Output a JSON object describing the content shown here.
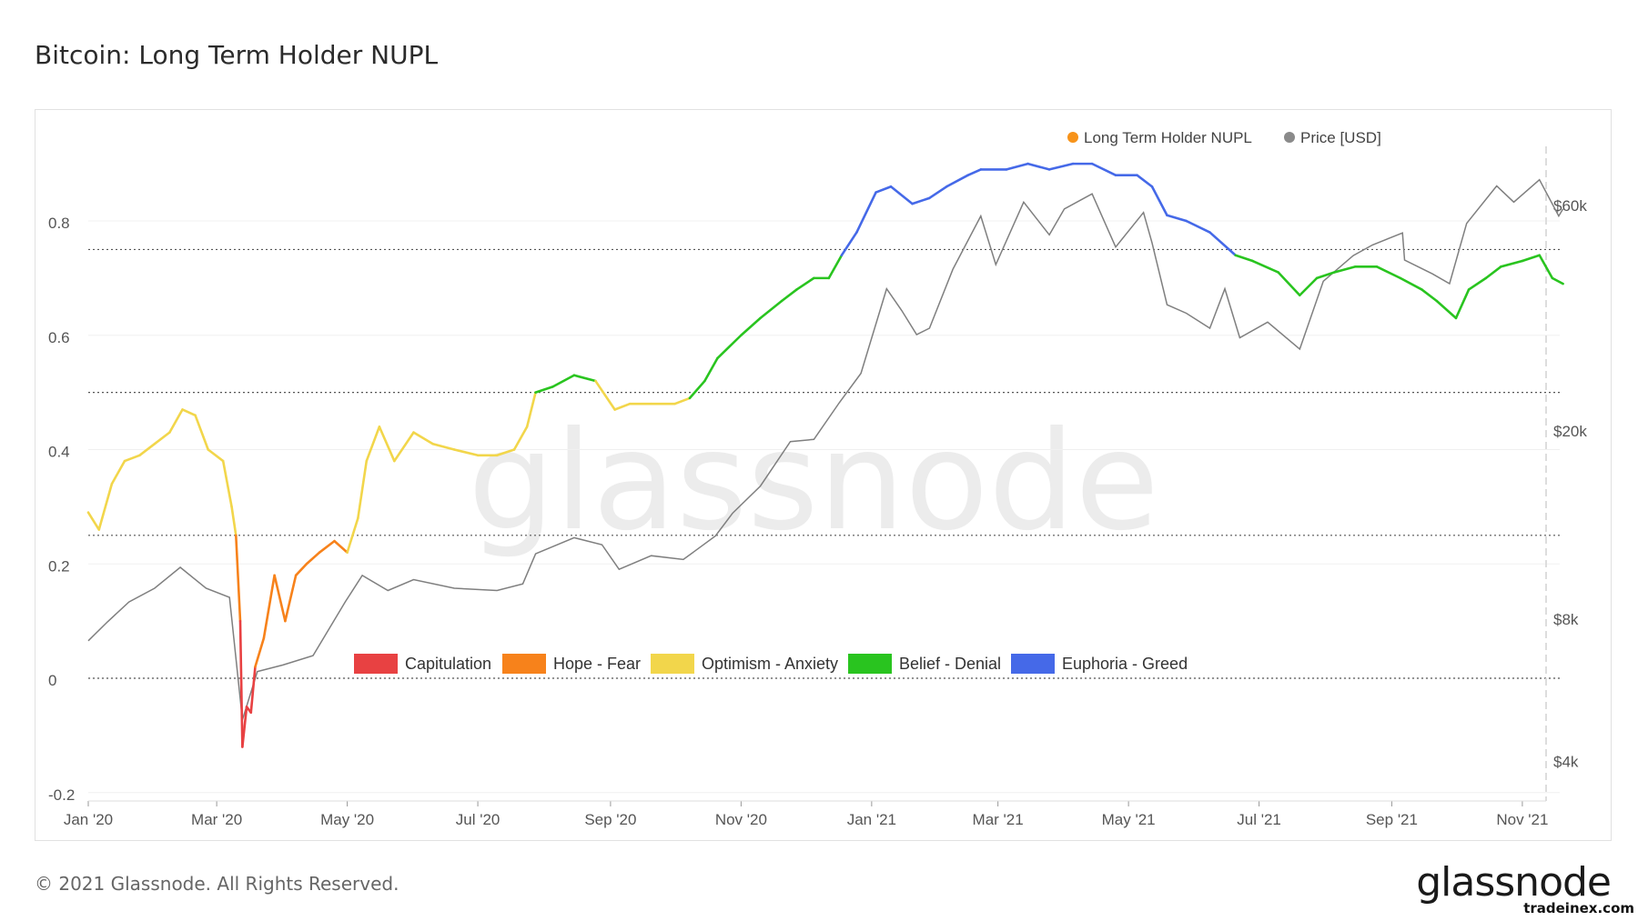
{
  "title": "Bitcoin: Long Term Holder NUPL",
  "footer": "© 2021 Glassnode. All Rights Reserved.",
  "brand": "glassnode",
  "watermark": "glassnode",
  "source": "tradeinex.com",
  "legend_top": [
    {
      "label": "Long Term Holder NUPL",
      "color": "#f7931a"
    },
    {
      "label": "Price [USD]",
      "color": "#8a8a8a"
    }
  ],
  "zones": [
    {
      "label": "Capitulation",
      "color": "#e84142"
    },
    {
      "label": "Hope - Fear",
      "color": "#f7821b"
    },
    {
      "label": "Optimism - Anxiety",
      "color": "#f2d64b"
    },
    {
      "label": "Belief - Denial",
      "color": "#29c41f"
    },
    {
      "label": "Euphoria - Greed",
      "color": "#4569e8"
    }
  ],
  "chart_data": {
    "type": "line",
    "xlabels": [
      "Jan '20",
      "Mar '20",
      "May '20",
      "Jul '20",
      "Sep '20",
      "Nov '20",
      "Jan '21",
      "Mar '21",
      "May '21",
      "Jul '21",
      "Sep '21",
      "Nov '21"
    ],
    "yticks_left": [
      "0.8",
      "0.6",
      "0.4",
      "0.2",
      "0",
      "-0.2"
    ],
    "yticks_right": [
      "$60k",
      "$20k",
      "$8k",
      "$4k"
    ],
    "ylim_left": [
      -0.2,
      1.0
    ],
    "zone_thresholds": [
      0,
      0.25,
      0.5,
      0.75
    ],
    "series": [
      {
        "name": "Long Term Holder NUPL",
        "axis": "left",
        "points": [
          [
            "2020-01-01",
            0.29
          ],
          [
            "2020-01-06",
            0.26
          ],
          [
            "2020-01-12",
            0.34
          ],
          [
            "2020-01-18",
            0.38
          ],
          [
            "2020-01-25",
            0.39
          ],
          [
            "2020-02-01",
            0.41
          ],
          [
            "2020-02-08",
            0.43
          ],
          [
            "2020-02-14",
            0.47
          ],
          [
            "2020-02-20",
            0.46
          ],
          [
            "2020-02-26",
            0.4
          ],
          [
            "2020-03-04",
            0.38
          ],
          [
            "2020-03-08",
            0.3
          ],
          [
            "2020-03-10",
            0.25
          ],
          [
            "2020-03-12",
            0.1
          ],
          [
            "2020-03-13",
            -0.12
          ],
          [
            "2020-03-15",
            -0.05
          ],
          [
            "2020-03-17",
            -0.06
          ],
          [
            "2020-03-19",
            0.02
          ],
          [
            "2020-03-23",
            0.07
          ],
          [
            "2020-03-28",
            0.18
          ],
          [
            "2020-04-02",
            0.1
          ],
          [
            "2020-04-07",
            0.18
          ],
          [
            "2020-04-12",
            0.2
          ],
          [
            "2020-04-18",
            0.22
          ],
          [
            "2020-04-25",
            0.24
          ],
          [
            "2020-05-01",
            0.22
          ],
          [
            "2020-05-06",
            0.28
          ],
          [
            "2020-05-10",
            0.38
          ],
          [
            "2020-05-16",
            0.44
          ],
          [
            "2020-05-23",
            0.38
          ],
          [
            "2020-06-01",
            0.43
          ],
          [
            "2020-06-10",
            0.41
          ],
          [
            "2020-06-20",
            0.4
          ],
          [
            "2020-07-01",
            0.39
          ],
          [
            "2020-07-10",
            0.39
          ],
          [
            "2020-07-18",
            0.4
          ],
          [
            "2020-07-24",
            0.44
          ],
          [
            "2020-07-28",
            0.5
          ],
          [
            "2020-08-05",
            0.51
          ],
          [
            "2020-08-15",
            0.53
          ],
          [
            "2020-08-25",
            0.52
          ],
          [
            "2020-09-03",
            0.47
          ],
          [
            "2020-09-10",
            0.48
          ],
          [
            "2020-09-20",
            0.48
          ],
          [
            "2020-10-01",
            0.48
          ],
          [
            "2020-10-08",
            0.49
          ],
          [
            "2020-10-15",
            0.52
          ],
          [
            "2020-10-21",
            0.56
          ],
          [
            "2020-11-01",
            0.6
          ],
          [
            "2020-11-10",
            0.63
          ],
          [
            "2020-11-20",
            0.66
          ],
          [
            "2020-11-27",
            0.68
          ],
          [
            "2020-12-05",
            0.7
          ],
          [
            "2020-12-12",
            0.7
          ],
          [
            "2020-12-18",
            0.74
          ],
          [
            "2020-12-25",
            0.78
          ],
          [
            "2021-01-03",
            0.85
          ],
          [
            "2021-01-10",
            0.86
          ],
          [
            "2021-01-20",
            0.83
          ],
          [
            "2021-01-28",
            0.84
          ],
          [
            "2021-02-05",
            0.86
          ],
          [
            "2021-02-15",
            0.88
          ],
          [
            "2021-02-21",
            0.89
          ],
          [
            "2021-03-05",
            0.89
          ],
          [
            "2021-03-15",
            0.9
          ],
          [
            "2021-03-25",
            0.89
          ],
          [
            "2021-04-05",
            0.9
          ],
          [
            "2021-04-14",
            0.9
          ],
          [
            "2021-04-25",
            0.88
          ],
          [
            "2021-05-05",
            0.88
          ],
          [
            "2021-05-12",
            0.86
          ],
          [
            "2021-05-19",
            0.81
          ],
          [
            "2021-05-28",
            0.8
          ],
          [
            "2021-06-08",
            0.78
          ],
          [
            "2021-06-20",
            0.74
          ],
          [
            "2021-06-28",
            0.73
          ],
          [
            "2021-07-10",
            0.71
          ],
          [
            "2021-07-20",
            0.67
          ],
          [
            "2021-07-28",
            0.7
          ],
          [
            "2021-08-05",
            0.71
          ],
          [
            "2021-08-15",
            0.72
          ],
          [
            "2021-08-25",
            0.72
          ],
          [
            "2021-09-05",
            0.7
          ],
          [
            "2021-09-15",
            0.68
          ],
          [
            "2021-09-22",
            0.66
          ],
          [
            "2021-10-01",
            0.63
          ],
          [
            "2021-10-07",
            0.68
          ],
          [
            "2021-10-15",
            0.7
          ],
          [
            "2021-10-22",
            0.72
          ],
          [
            "2021-11-01",
            0.73
          ],
          [
            "2021-11-09",
            0.74
          ],
          [
            "2021-11-15",
            0.7
          ],
          [
            "2021-11-20",
            0.69
          ]
        ]
      },
      {
        "name": "Price [USD]",
        "axis": "right",
        "points": [
          [
            "2020-01-01",
            7200
          ],
          [
            "2020-01-10",
            7900
          ],
          [
            "2020-01-20",
            8700
          ],
          [
            "2020-02-01",
            9300
          ],
          [
            "2020-02-13",
            10300
          ],
          [
            "2020-02-25",
            9300
          ],
          [
            "2020-03-07",
            8900
          ],
          [
            "2020-03-13",
            4900
          ],
          [
            "2020-03-20",
            6200
          ],
          [
            "2020-04-01",
            6400
          ],
          [
            "2020-04-15",
            6700
          ],
          [
            "2020-04-30",
            8700
          ],
          [
            "2020-05-08",
            9900
          ],
          [
            "2020-05-20",
            9200
          ],
          [
            "2020-06-01",
            9700
          ],
          [
            "2020-06-20",
            9300
          ],
          [
            "2020-07-10",
            9200
          ],
          [
            "2020-07-22",
            9500
          ],
          [
            "2020-07-28",
            11000
          ],
          [
            "2020-08-15",
            11900
          ],
          [
            "2020-08-28",
            11500
          ],
          [
            "2020-09-05",
            10200
          ],
          [
            "2020-09-20",
            10900
          ],
          [
            "2020-10-05",
            10700
          ],
          [
            "2020-10-20",
            12000
          ],
          [
            "2020-10-28",
            13400
          ],
          [
            "2020-11-10",
            15300
          ],
          [
            "2020-11-24",
            19000
          ],
          [
            "2020-12-05",
            19200
          ],
          [
            "2020-12-17",
            23000
          ],
          [
            "2020-12-27",
            26500
          ],
          [
            "2021-01-08",
            40000
          ],
          [
            "2021-01-15",
            36000
          ],
          [
            "2021-01-22",
            32000
          ],
          [
            "2021-01-28",
            33000
          ],
          [
            "2021-02-08",
            44000
          ],
          [
            "2021-02-21",
            57000
          ],
          [
            "2021-02-28",
            45000
          ],
          [
            "2021-03-13",
            61000
          ],
          [
            "2021-03-25",
            52000
          ],
          [
            "2021-04-01",
            59000
          ],
          [
            "2021-04-14",
            63500
          ],
          [
            "2021-04-25",
            49000
          ],
          [
            "2021-05-08",
            58000
          ],
          [
            "2021-05-12",
            50000
          ],
          [
            "2021-05-19",
            37000
          ],
          [
            "2021-05-28",
            35500
          ],
          [
            "2021-06-08",
            33000
          ],
          [
            "2021-06-15",
            40000
          ],
          [
            "2021-06-22",
            31500
          ],
          [
            "2021-07-05",
            34000
          ],
          [
            "2021-07-20",
            29800
          ],
          [
            "2021-07-31",
            41500
          ],
          [
            "2021-08-14",
            47000
          ],
          [
            "2021-08-23",
            49500
          ],
          [
            "2021-09-06",
            52500
          ],
          [
            "2021-09-07",
            46000
          ],
          [
            "2021-09-20",
            43000
          ],
          [
            "2021-09-28",
            41000
          ],
          [
            "2021-10-06",
            55000
          ],
          [
            "2021-10-20",
            66000
          ],
          [
            "2021-10-28",
            61000
          ],
          [
            "2021-11-09",
            68000
          ],
          [
            "2021-11-18",
            57000
          ],
          [
            "2021-11-20",
            59000
          ]
        ]
      }
    ]
  }
}
